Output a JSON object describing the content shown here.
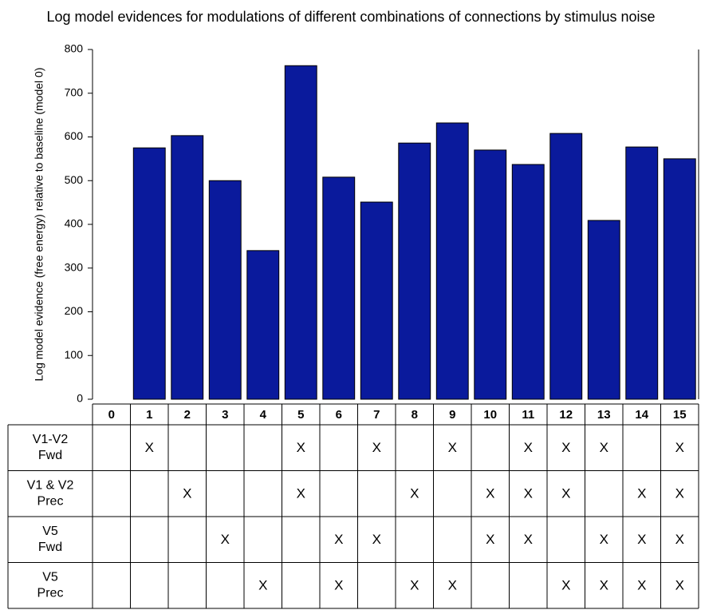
{
  "chart_data": {
    "type": "bar",
    "title": "Log model evidences for modulations of different combinations of connections by stimulus noise",
    "y_label": "Log model evidence (free energy) relative to baseline (model 0)",
    "categories": [
      "0",
      "1",
      "2",
      "3",
      "4",
      "5",
      "6",
      "7",
      "8",
      "9",
      "10",
      "11",
      "12",
      "13",
      "14",
      "15"
    ],
    "values": [
      0,
      575,
      603,
      500,
      340,
      763,
      508,
      451,
      586,
      632,
      570,
      537,
      608,
      409,
      577,
      550
    ],
    "color": "#0a1a9c",
    "ylim": [
      0,
      800
    ],
    "yticks": [
      0,
      100,
      200,
      300,
      400,
      500,
      600,
      700,
      800
    ],
    "table": {
      "rows": [
        {
          "label": [
            "V1-V2",
            "Fwd"
          ],
          "cells": [
            null,
            "X",
            null,
            null,
            null,
            "X",
            null,
            "X",
            null,
            "X",
            null,
            "X",
            "X",
            "X",
            null,
            "X"
          ]
        },
        {
          "label": [
            "V1 & V2",
            "Prec"
          ],
          "cells": [
            null,
            null,
            "X",
            null,
            null,
            "X",
            null,
            null,
            "X",
            null,
            "X",
            "X",
            "X",
            null,
            "X",
            "X"
          ]
        },
        {
          "label": [
            "V5",
            "Fwd"
          ],
          "cells": [
            null,
            null,
            null,
            "X",
            null,
            null,
            "X",
            "X",
            null,
            null,
            "X",
            "X",
            null,
            "X",
            "X",
            "X"
          ]
        },
        {
          "label": [
            "V5",
            "Prec"
          ],
          "cells": [
            null,
            null,
            null,
            null,
            "X",
            null,
            "X",
            null,
            "X",
            "X",
            null,
            null,
            "X",
            "X",
            "X",
            "X"
          ]
        }
      ]
    }
  }
}
